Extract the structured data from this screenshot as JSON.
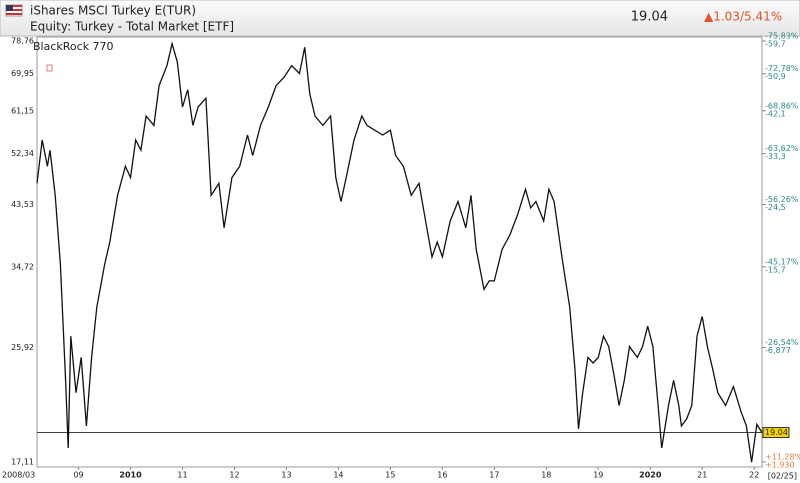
{
  "chart_data": {
    "type": "line",
    "title": "iShares MSCI Turkey E(TUR)",
    "subtitle": "Equity: Turkey - Total Market [ETF]",
    "last_price": 19.04,
    "change": "▲1.03/5.41%",
    "annotation": "BlackRock 770",
    "start_label": "2008/03",
    "end_label": "[02/25]",
    "color": "#111111",
    "log_scale": true,
    "xlim": [
      2008.2,
      2022.15
    ],
    "xticks": [
      {
        "value": 2009,
        "label": "09"
      },
      2010,
      {
        "value": 2011,
        "label": "11"
      },
      {
        "value": 2012,
        "label": "12"
      },
      {
        "value": 2013,
        "label": "13"
      },
      {
        "value": 2014,
        "label": "14"
      },
      {
        "value": 2015,
        "label": "15"
      },
      {
        "value": 2016,
        "label": "16"
      },
      {
        "value": 2017,
        "label": "17"
      },
      {
        "value": 2018,
        "label": "18"
      },
      {
        "value": 2019,
        "label": "19"
      },
      2020,
      {
        "value": 2021,
        "label": "21"
      },
      {
        "value": 2022,
        "label": "22"
      }
    ],
    "ylim": [
      17.11,
      78.76
    ],
    "yticks": [
      {
        "value": 78.76,
        "label": "78,76"
      },
      {
        "value": 69.95,
        "label": "69,95"
      },
      {
        "value": 61.15,
        "label": "61,15"
      },
      {
        "value": 52.34,
        "label": "52,34"
      },
      {
        "value": 43.53,
        "label": "43,53"
      },
      {
        "value": 34.72,
        "label": "34,72"
      },
      {
        "value": 25.92,
        "label": "25,92"
      },
      {
        "value": 17.11,
        "label": "17,11"
      }
    ],
    "right_pct_labels": [
      "-75,83%",
      "-72,78%",
      "-68,86%",
      "-63,62%",
      "-56,26%",
      "-45,17%",
      "-26,54%",
      "+11,28%"
    ],
    "right_diff_labels": [
      "-59,7",
      "-50,9",
      "-42,1",
      "-33,3",
      "-24,5",
      "-15,7",
      "-6,877",
      "+1,930"
    ],
    "x": [
      2008.2,
      2008.3,
      2008.4,
      2008.45,
      2008.55,
      2008.65,
      2008.75,
      2008.8,
      2008.85,
      2008.95,
      2009.05,
      2009.15,
      2009.25,
      2009.35,
      2009.5,
      2009.6,
      2009.75,
      2009.9,
      2010.0,
      2010.1,
      2010.2,
      2010.3,
      2010.45,
      2010.55,
      2010.7,
      2010.8,
      2010.9,
      2011.0,
      2011.1,
      2011.2,
      2011.3,
      2011.45,
      2011.55,
      2011.7,
      2011.8,
      2011.95,
      2012.1,
      2012.25,
      2012.35,
      2012.5,
      2012.65,
      2012.8,
      2012.95,
      2013.1,
      2013.25,
      2013.35,
      2013.45,
      2013.55,
      2013.7,
      2013.85,
      2013.95,
      2014.05,
      2014.15,
      2014.3,
      2014.45,
      2014.55,
      2014.7,
      2014.85,
      2015.0,
      2015.1,
      2015.25,
      2015.4,
      2015.55,
      2015.7,
      2015.8,
      2015.9,
      2016.0,
      2016.15,
      2016.3,
      2016.45,
      2016.55,
      2016.65,
      2016.8,
      2016.9,
      2017.0,
      2017.15,
      2017.3,
      2017.45,
      2017.6,
      2017.7,
      2017.8,
      2017.95,
      2018.05,
      2018.15,
      2018.3,
      2018.45,
      2018.55,
      2018.62,
      2018.7,
      2018.8,
      2018.9,
      2019.0,
      2019.1,
      2019.2,
      2019.3,
      2019.4,
      2019.5,
      2019.6,
      2019.75,
      2019.85,
      2019.95,
      2020.05,
      2020.15,
      2020.22,
      2020.35,
      2020.45,
      2020.55,
      2020.6,
      2020.7,
      2020.8,
      2020.9,
      2021.0,
      2021.1,
      2021.2,
      2021.3,
      2021.45,
      2021.6,
      2021.75,
      2021.85,
      2021.95,
      2022.05,
      2022.15
    ],
    "values": [
      47,
      55,
      50,
      53,
      45,
      35,
      23,
      18,
      27,
      22,
      25,
      19.5,
      25,
      30,
      35,
      38,
      45,
      50,
      48,
      55,
      53,
      60,
      58,
      67,
      72,
      78,
      73,
      62,
      66,
      58,
      62,
      64,
      45,
      47,
      40,
      48,
      50,
      56,
      52,
      58,
      62,
      67,
      69,
      72,
      70,
      77,
      65,
      60,
      58,
      60,
      48,
      44,
      48,
      55,
      60,
      58,
      57,
      56,
      57,
      52,
      50,
      45,
      47,
      40,
      36,
      38,
      36,
      41,
      44,
      40,
      45,
      37,
      32,
      33,
      33,
      37,
      39,
      42,
      46,
      43,
      44,
      41,
      46,
      44,
      36,
      30,
      24,
      19.3,
      22,
      25,
      24.5,
      25,
      27,
      26,
      23.5,
      21,
      23,
      26,
      25,
      26,
      28,
      26,
      21,
      18,
      21,
      23,
      21,
      19.5,
      20,
      21,
      27,
      29,
      26,
      24,
      22,
      21,
      22.5,
      20.5,
      19.5,
      17.1,
      19.6,
      19.04
    ]
  }
}
